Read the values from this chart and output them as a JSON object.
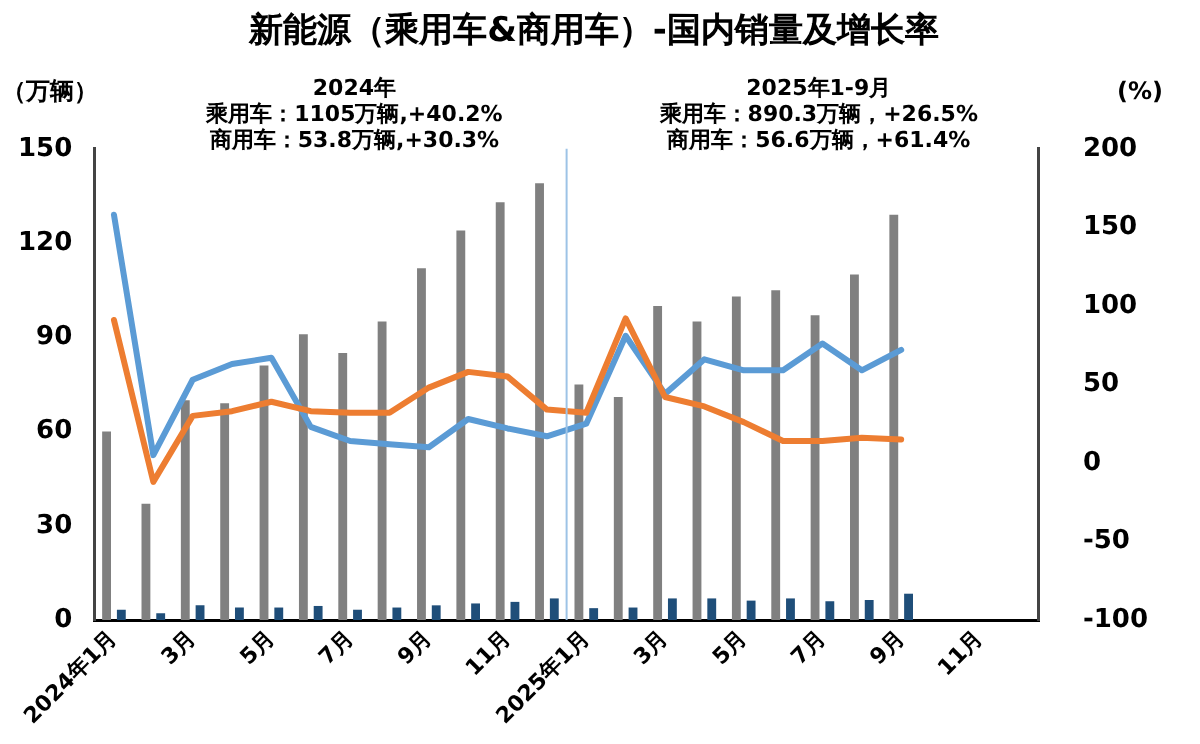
{
  "chart_data": {
    "type": "bar",
    "title": "新能源（乘用车&商用车）-国内销量及增长率",
    "ylabel": "（万辆）",
    "y2label": "(%)",
    "annotations": [
      "2024年",
      "乘用车：1105万辆,+40.2%",
      "商用车：53.8万辆,+30.3%",
      "2025年1-9月",
      "乘用车：890.3万辆，+26.5%",
      "商用车：56.6万辆，+61.4%"
    ],
    "categories": [
      "2024年1月",
      null,
      "3月",
      null,
      "5月",
      null,
      "7月",
      null,
      "9月",
      null,
      "11月",
      null,
      "2025年1月",
      null,
      "3月",
      null,
      "5月",
      null,
      "7月",
      null,
      "9月",
      null,
      "11月",
      null
    ],
    "series": [
      {
        "color": "#808080",
        "values": [
          60,
          37,
          70,
          69,
          81,
          91,
          85,
          95,
          112,
          124,
          133,
          139,
          75,
          71,
          100,
          95,
          103,
          105,
          97,
          110,
          129,
          null,
          null,
          null
        ]
      },
      {
        "color": "#1f4e79",
        "values": [
          3.3,
          2.2,
          4.7,
          4,
          4,
          4.5,
          3.3,
          4,
          4.7,
          5.3,
          5.8,
          6.9,
          3.8,
          4,
          6.9,
          6.9,
          6.2,
          6.9,
          6,
          6.4,
          8.4,
          null,
          null,
          null
        ]
      },
      {
        "type": "line",
        "axis": "y2",
        "color": "#ed7d31",
        "values": [
          91,
          -12,
          30,
          33,
          39,
          33,
          32,
          32,
          48,
          58,
          55,
          34,
          32,
          92,
          42,
          36,
          26,
          14,
          14,
          16,
          15,
          null,
          null,
          null
        ]
      },
      {
        "type": "line",
        "axis": "y2",
        "color": "#5b9bd5",
        "values": [
          158,
          5,
          53,
          63,
          67,
          23,
          14,
          12,
          10,
          28,
          22,
          17,
          25,
          81,
          44,
          66,
          59,
          59,
          76,
          59,
          72,
          null,
          null,
          null
        ]
      }
    ],
    "ylim": [
      0,
      150
    ],
    "yticks": [
      0,
      30,
      60,
      90,
      120,
      150
    ],
    "y2lim": [
      -100,
      200
    ],
    "y2ticks": [
      -100,
      -50,
      0,
      50,
      100,
      150,
      200
    ],
    "ref_lines": [
      {
        "axis": "x",
        "value": "2025年1月",
        "color": "#9dc3e6"
      }
    ],
    "marker": "none",
    "line_style": "solid"
  }
}
